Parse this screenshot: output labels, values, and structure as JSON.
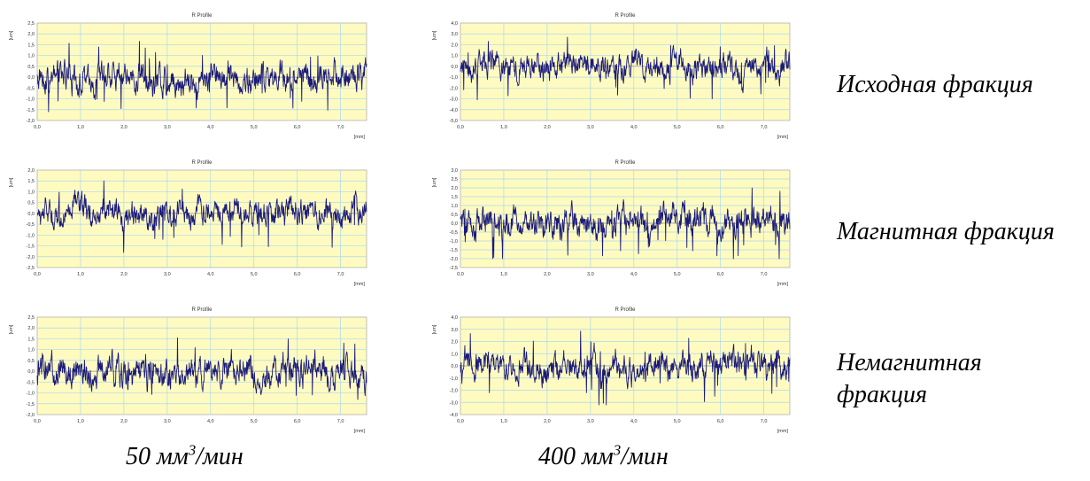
{
  "figure": {
    "row_labels": [
      "Исходная фракция",
      "Магнитная фракция",
      "Немагнитная фракция"
    ],
    "col_labels": [
      {
        "pre": "50 мм",
        "sup": "3",
        "post": "/мин"
      },
      {
        "pre": "400 мм",
        "sup": "3",
        "post": "/мин"
      }
    ]
  },
  "chart_data": [
    {
      "type": "line",
      "title": "R Profile",
      "ylabel": "[um]",
      "xlabel": "[mm]",
      "xlim": [
        0,
        7.6
      ],
      "ylim": [
        -2.0,
        2.5
      ],
      "yticks": [
        "2,5",
        "2,0",
        "1,5",
        "1,0",
        "0,5",
        "0,0",
        "-0,5",
        "-1,0",
        "-1,5",
        "-2,0"
      ],
      "xticks": [
        "0,0",
        "1,0",
        "2,0",
        "3,0",
        "4,0",
        "5,0",
        "6,0",
        "7,0"
      ],
      "series": [
        {
          "amplitude": 0.55,
          "range": [
            -1.7,
            2.2
          ]
        }
      ],
      "colors": {
        "plot_bg": "#fffbc0",
        "grid": "#a9d8ec",
        "line": "#1b1b7a"
      }
    },
    {
      "type": "line",
      "title": "R Profile",
      "ylabel": "[um]",
      "xlabel": "[mm]",
      "xlim": [
        0,
        7.6
      ],
      "ylim": [
        -5.0,
        4.0
      ],
      "yticks": [
        "4,0",
        "3,0",
        "2,0",
        "1,0",
        "0,0",
        "-1,0",
        "-2,0",
        "-3,0",
        "-4,0",
        "-5,0"
      ],
      "xticks": [
        "0,0",
        "1,0",
        "2,0",
        "3,0",
        "4,0",
        "5,0",
        "6,0",
        "7,0"
      ],
      "series": [
        {
          "amplitude": 1.0,
          "range": [
            -3.8,
            2.7
          ]
        }
      ],
      "colors": {
        "plot_bg": "#fffbc0",
        "grid": "#a9d8ec",
        "line": "#1b1b7a"
      }
    },
    {
      "type": "line",
      "title": "R Profile",
      "ylabel": "[um]",
      "xlabel": "[mm]",
      "xlim": [
        0,
        7.6
      ],
      "ylim": [
        -2.5,
        2.0
      ],
      "yticks": [
        "2,0",
        "1,5",
        "1,0",
        "0,5",
        "0,0",
        "-0,5",
        "-1,0",
        "-1,5",
        "-2,0",
        "-2,5"
      ],
      "xticks": [
        "0,0",
        "1,0",
        "2,0",
        "3,0",
        "4,0",
        "5,0",
        "6,0",
        "7,0"
      ],
      "series": [
        {
          "amplitude": 0.5,
          "range": [
            -1.8,
            1.5
          ]
        }
      ],
      "colors": {
        "plot_bg": "#fffbc0",
        "grid": "#a9d8ec",
        "line": "#1b1b7a"
      }
    },
    {
      "type": "line",
      "title": "R Profile",
      "ylabel": "[um]",
      "xlabel": "[mm]",
      "xlim": [
        0,
        7.6
      ],
      "ylim": [
        -2.5,
        3.0
      ],
      "yticks": [
        "3,0",
        "2,5",
        "2,0",
        "1,5",
        "1,0",
        "0,5",
        "0,0",
        "-0,5",
        "-1,0",
        "-1,5",
        "-2,0",
        "-2,5"
      ],
      "xticks": [
        "0,0",
        "1,0",
        "2,0",
        "3,0",
        "4,0",
        "5,0",
        "6,0",
        "7,0"
      ],
      "series": [
        {
          "amplitude": 0.7,
          "range": [
            -2.0,
            2.4
          ]
        }
      ],
      "colors": {
        "plot_bg": "#fffbc0",
        "grid": "#a9d8ec",
        "line": "#1b1b7a"
      }
    },
    {
      "type": "line",
      "title": "R Profile",
      "ylabel": "[um]",
      "xlabel": "[mm]",
      "xlim": [
        0,
        7.6
      ],
      "ylim": [
        -2.0,
        2.5
      ],
      "yticks": [
        "2,5",
        "2,0",
        "1,5",
        "1,0",
        "0,5",
        "0,0",
        "-0,5",
        "-1,0",
        "-1,5",
        "-2,0"
      ],
      "xticks": [
        "0,0",
        "1,0",
        "2,0",
        "3,0",
        "4,0",
        "5,0",
        "6,0",
        "7,0"
      ],
      "series": [
        {
          "amplitude": 0.6,
          "range": [
            -1.8,
            2.1
          ]
        }
      ],
      "colors": {
        "plot_bg": "#fffbc0",
        "grid": "#a9d8ec",
        "line": "#1b1b7a"
      }
    },
    {
      "type": "line",
      "title": "R Profile",
      "ylabel": "[um]",
      "xlabel": "[mm]",
      "xlim": [
        0,
        7.6
      ],
      "ylim": [
        -4.0,
        4.0
      ],
      "yticks": [
        "4,0",
        "3,0",
        "2,0",
        "1,0",
        "0,0",
        "-1,0",
        "-2,0",
        "-3,0",
        "-4,0"
      ],
      "xticks": [
        "0,0",
        "1,0",
        "2,0",
        "3,0",
        "4,0",
        "5,0",
        "6,0",
        "7,0"
      ],
      "series": [
        {
          "amplitude": 1.0,
          "range": [
            -3.2,
            3.0
          ]
        }
      ],
      "colors": {
        "plot_bg": "#fffbc0",
        "grid": "#a9d8ec",
        "line": "#1b1b7a"
      }
    }
  ]
}
